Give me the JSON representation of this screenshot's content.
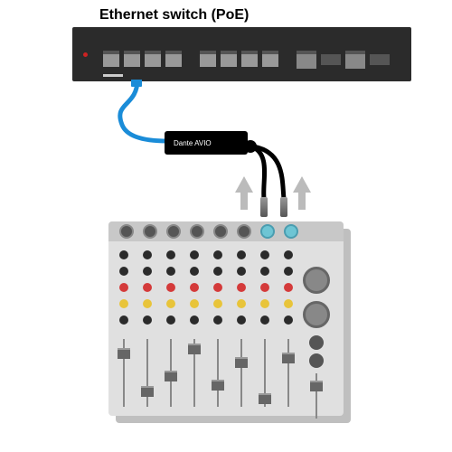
{
  "title": "Ethernet switch (PoE)",
  "avio_label": "Dante AVIO",
  "colors": {
    "switch_body": "#2b2b2b",
    "cable": "#1a8cd8",
    "mixer_body": "#e0e0e0",
    "mixer_shadow": "#bfbfbf",
    "arrow": "#bbbbbb"
  },
  "switch": {
    "led_color": "#cc2222",
    "ports_group1": 4,
    "ports_group2": 4,
    "uplink_ports": 2,
    "sfp_slots": 2
  },
  "mixer": {
    "channels": 8,
    "active_inputs": [
      6,
      7
    ],
    "knob_rows": [
      {
        "color": "#2b2b2b"
      },
      {
        "color": "#2b2b2b"
      },
      {
        "color": "#d43a3a"
      },
      {
        "color": "#e8c43a"
      },
      {
        "color": "#2b2b2b"
      }
    ],
    "fader_positions": [
      10,
      52,
      35,
      5,
      45,
      20,
      60,
      15
    ],
    "master_big_knobs": 2
  },
  "arrows": 2
}
